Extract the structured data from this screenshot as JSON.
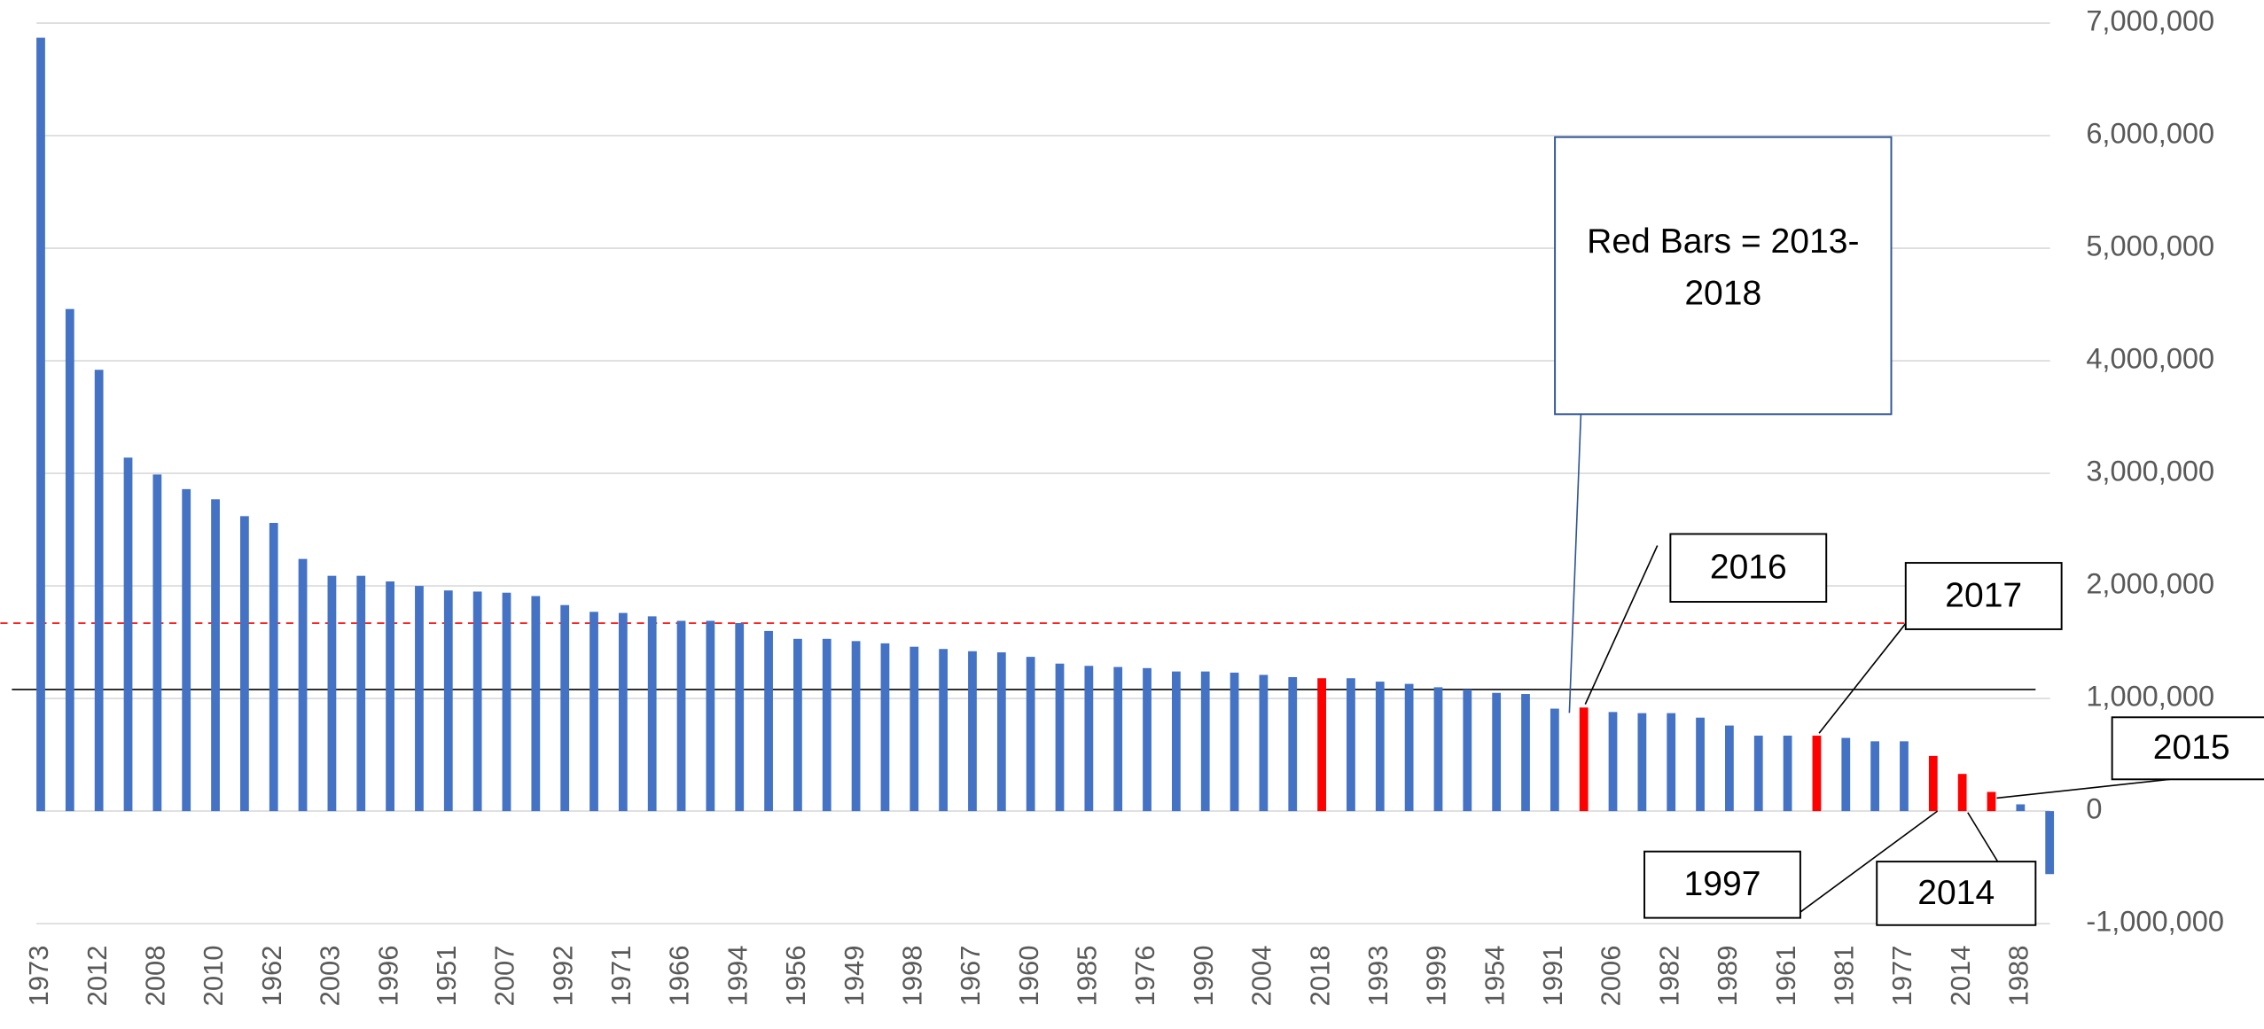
{
  "chart_data": {
    "type": "bar",
    "categories": [
      "1973",
      null,
      "2012",
      null,
      "2008",
      null,
      "2010",
      null,
      "1962",
      null,
      "2003",
      null,
      "1996",
      null,
      "1951",
      null,
      "2007",
      null,
      "1992",
      null,
      "1971",
      null,
      "1966",
      null,
      "1994",
      null,
      "1956",
      null,
      "1949",
      null,
      "1998",
      null,
      "1967",
      null,
      "1960",
      null,
      "1985",
      null,
      "1976",
      null,
      "1990",
      null,
      "2004",
      null,
      "2018",
      null,
      "1993",
      null,
      "1999",
      null,
      "1954",
      null,
      "1991",
      null,
      "2006",
      null,
      "1982",
      null,
      "1989",
      null,
      "1961",
      null,
      "1981",
      null,
      "1977",
      null,
      "2014",
      null,
      "1988",
      null
    ],
    "values": [
      6870000,
      4460000,
      3920000,
      3140000,
      2990000,
      2860000,
      2770000,
      2620000,
      2560000,
      2240000,
      2090000,
      2090000,
      2040000,
      2000000,
      1960000,
      1950000,
      1940000,
      1910000,
      1830000,
      1770000,
      1760000,
      1730000,
      1690000,
      1690000,
      1670000,
      1600000,
      1530000,
      1530000,
      1510000,
      1490000,
      1460000,
      1440000,
      1420000,
      1410000,
      1370000,
      1310000,
      1290000,
      1280000,
      1270000,
      1240000,
      1240000,
      1230000,
      1210000,
      1190000,
      1180000,
      1180000,
      1150000,
      1130000,
      1100000,
      1080000,
      1050000,
      1040000,
      910000,
      920000,
      880000,
      870000,
      870000,
      830000,
      760000,
      670000,
      670000,
      670000,
      650000,
      620000,
      620000,
      490000,
      330000,
      170000,
      60000,
      -560000
    ],
    "colors": [
      "#4472C4",
      "#4472C4",
      "#4472C4",
      "#4472C4",
      "#4472C4",
      "#4472C4",
      "#4472C4",
      "#4472C4",
      "#4472C4",
      "#4472C4",
      "#4472C4",
      "#4472C4",
      "#4472C4",
      "#4472C4",
      "#4472C4",
      "#4472C4",
      "#4472C4",
      "#4472C4",
      "#4472C4",
      "#4472C4",
      "#4472C4",
      "#4472C4",
      "#4472C4",
      "#4472C4",
      "#4472C4",
      "#4472C4",
      "#4472C4",
      "#4472C4",
      "#4472C4",
      "#4472C4",
      "#4472C4",
      "#4472C4",
      "#4472C4",
      "#4472C4",
      "#4472C4",
      "#4472C4",
      "#4472C4",
      "#4472C4",
      "#4472C4",
      "#4472C4",
      "#4472C4",
      "#4472C4",
      "#4472C4",
      "#4472C4",
      "#FF0000",
      "#4472C4",
      "#4472C4",
      "#4472C4",
      "#4472C4",
      "#4472C4",
      "#4472C4",
      "#4472C4",
      "#4472C4",
      "#FF0000",
      "#4472C4",
      "#4472C4",
      "#4472C4",
      "#4472C4",
      "#4472C4",
      "#4472C4",
      "#4472C4",
      "#FF0000",
      "#4472C4",
      "#4472C4",
      "#4472C4",
      "#FF0000",
      "#FF0000",
      "#FF0000",
      "#4472C4",
      "#4472C4"
    ],
    "ylim": [
      -1000000,
      7000000
    ],
    "yticks": [
      {
        "value": -1000000,
        "label": "-1,000,000"
      },
      0,
      {
        "value": 1000000,
        "label": "1,000,000"
      },
      {
        "value": 2000000,
        "label": "2,000,000"
      },
      {
        "value": 3000000,
        "label": "3,000,000"
      },
      {
        "value": 4000000,
        "label": "4,000,000"
      },
      {
        "value": 5000000,
        "label": "5,000,000"
      },
      {
        "value": 6000000,
        "label": "6,000,000"
      },
      {
        "value": 7000000,
        "label": "7,000,000"
      }
    ],
    "grid": true,
    "reference_lines": [
      {
        "value": 1670000,
        "color": "#FF0000",
        "style": "dashed"
      },
      {
        "value": 1080000,
        "color": "#000000",
        "style": "solid"
      }
    ],
    "annotations": [
      {
        "text": "Red Bars = 2013-2018"
      },
      {
        "text": "2016"
      },
      {
        "text": "2017"
      },
      {
        "text": "2015"
      },
      {
        "text": "1997"
      },
      {
        "text": "2014"
      }
    ]
  }
}
